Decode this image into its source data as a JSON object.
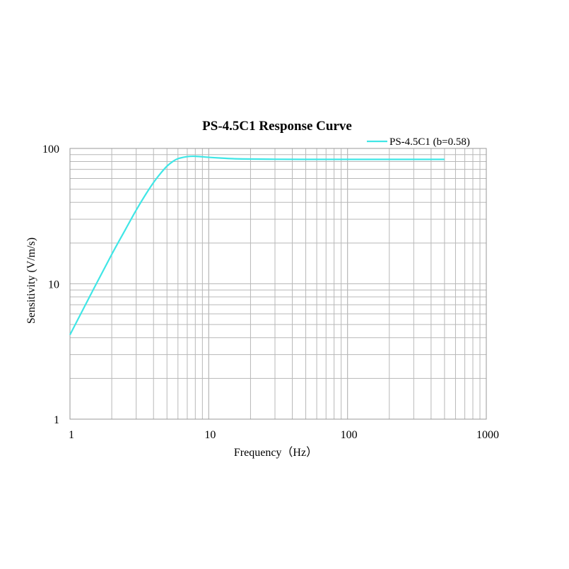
{
  "chart_data": {
    "type": "line",
    "title": "PS-4.5C1 Response Curve",
    "xlabel": "Frequency（Hz）",
    "ylabel": "Sensitivity  (V/m/s)",
    "xscale": "log",
    "yscale": "log",
    "xlim": [
      1,
      1000
    ],
    "ylim": [
      1,
      100
    ],
    "x_tick_labels": [
      "1",
      "10",
      "100",
      "1000"
    ],
    "y_tick_labels": [
      "1",
      "10",
      "100"
    ],
    "grid": true,
    "legend_position": "top-right",
    "series": [
      {
        "name": "PS-4.5C1 (b=0.58)",
        "color": "#40e6e6",
        "x": [
          1,
          1.5,
          2,
          2.5,
          3,
          3.5,
          4,
          4.5,
          5,
          5.5,
          6,
          7,
          8,
          10,
          12,
          15,
          20,
          30,
          50,
          100,
          200,
          300,
          500
        ],
        "y": [
          4.2,
          9.4,
          16.5,
          25,
          35,
          45.5,
          56,
          65.5,
          74,
          80,
          84,
          87,
          87.5,
          86,
          85,
          84,
          83.5,
          83.2,
          83,
          83,
          83,
          83,
          83
        ]
      }
    ]
  }
}
